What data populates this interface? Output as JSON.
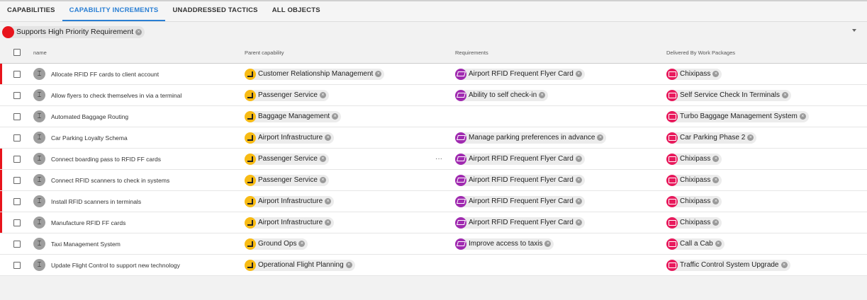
{
  "tabs": [
    {
      "label": "CAPABILITIES",
      "active": false
    },
    {
      "label": "CAPABILITY INCREMENTS",
      "active": true
    },
    {
      "label": "UNADDRESSED TACTICS",
      "active": false
    },
    {
      "label": "ALL OBJECTS",
      "active": false
    }
  ],
  "filter": {
    "label": "Supports High Priority Requirement",
    "color": "#e8141c"
  },
  "columns": {
    "name": "name",
    "parent": "Parent capability",
    "requirements": "Requirements",
    "delivered": "Delivered By Work Packages"
  },
  "colors": {
    "accent": "#2a7fd4",
    "flag": "#e8141c",
    "capability": "#f8bb14",
    "requirement": "#a02ab0",
    "work_package": "#e8195c"
  },
  "rows": [
    {
      "name": "Allocate RFID FF cards to client account",
      "flag": true,
      "parent": "Customer Relationship Management",
      "req": "Airport RFID Frequent Flyer Card",
      "wp": "Chixipass"
    },
    {
      "name": "Allow flyers to check themselves in via a terminal",
      "flag": false,
      "parent": "Passenger Service",
      "req": "Ability to self check-in",
      "wp": "Self Service Check In Terminals"
    },
    {
      "name": "Automated Baggage Routing",
      "flag": false,
      "parent": "Baggage Management",
      "req": null,
      "wp": "Turbo Baggage Management System"
    },
    {
      "name": "Car Parking Loyalty Schema",
      "flag": false,
      "parent": "Airport Infrastructure",
      "req": "Manage parking preferences in advance",
      "wp": "Car Parking Phase 2"
    },
    {
      "name": "Connect boarding pass to RFID FF cards",
      "flag": true,
      "parent": "Passenger Service",
      "req": "Airport RFID Frequent Flyer Card",
      "wp": "Chixipass",
      "more": "···"
    },
    {
      "name": "Connect RFID scanners to check in systems",
      "flag": true,
      "parent": "Passenger Service",
      "req": "Airport RFID Frequent Flyer Card",
      "wp": "Chixipass"
    },
    {
      "name": "Install RFID scanners in terminals",
      "flag": true,
      "parent": "Airport Infrastructure",
      "req": "Airport RFID Frequent Flyer Card",
      "wp": "Chixipass"
    },
    {
      "name": "Manufacture RFID FF cards",
      "flag": true,
      "parent": "Airport Infrastructure",
      "req": "Airport RFID Frequent Flyer Card",
      "wp": "Chixipass"
    },
    {
      "name": "Taxi Management System",
      "flag": false,
      "parent": "Ground Ops",
      "req": "Improve access to taxis",
      "wp": "Call a Cab"
    },
    {
      "name": "Update Flight Control to support new technology",
      "flag": false,
      "parent": "Operational Flight Planning",
      "req": null,
      "wp": "Traffic Control System Upgrade"
    }
  ]
}
